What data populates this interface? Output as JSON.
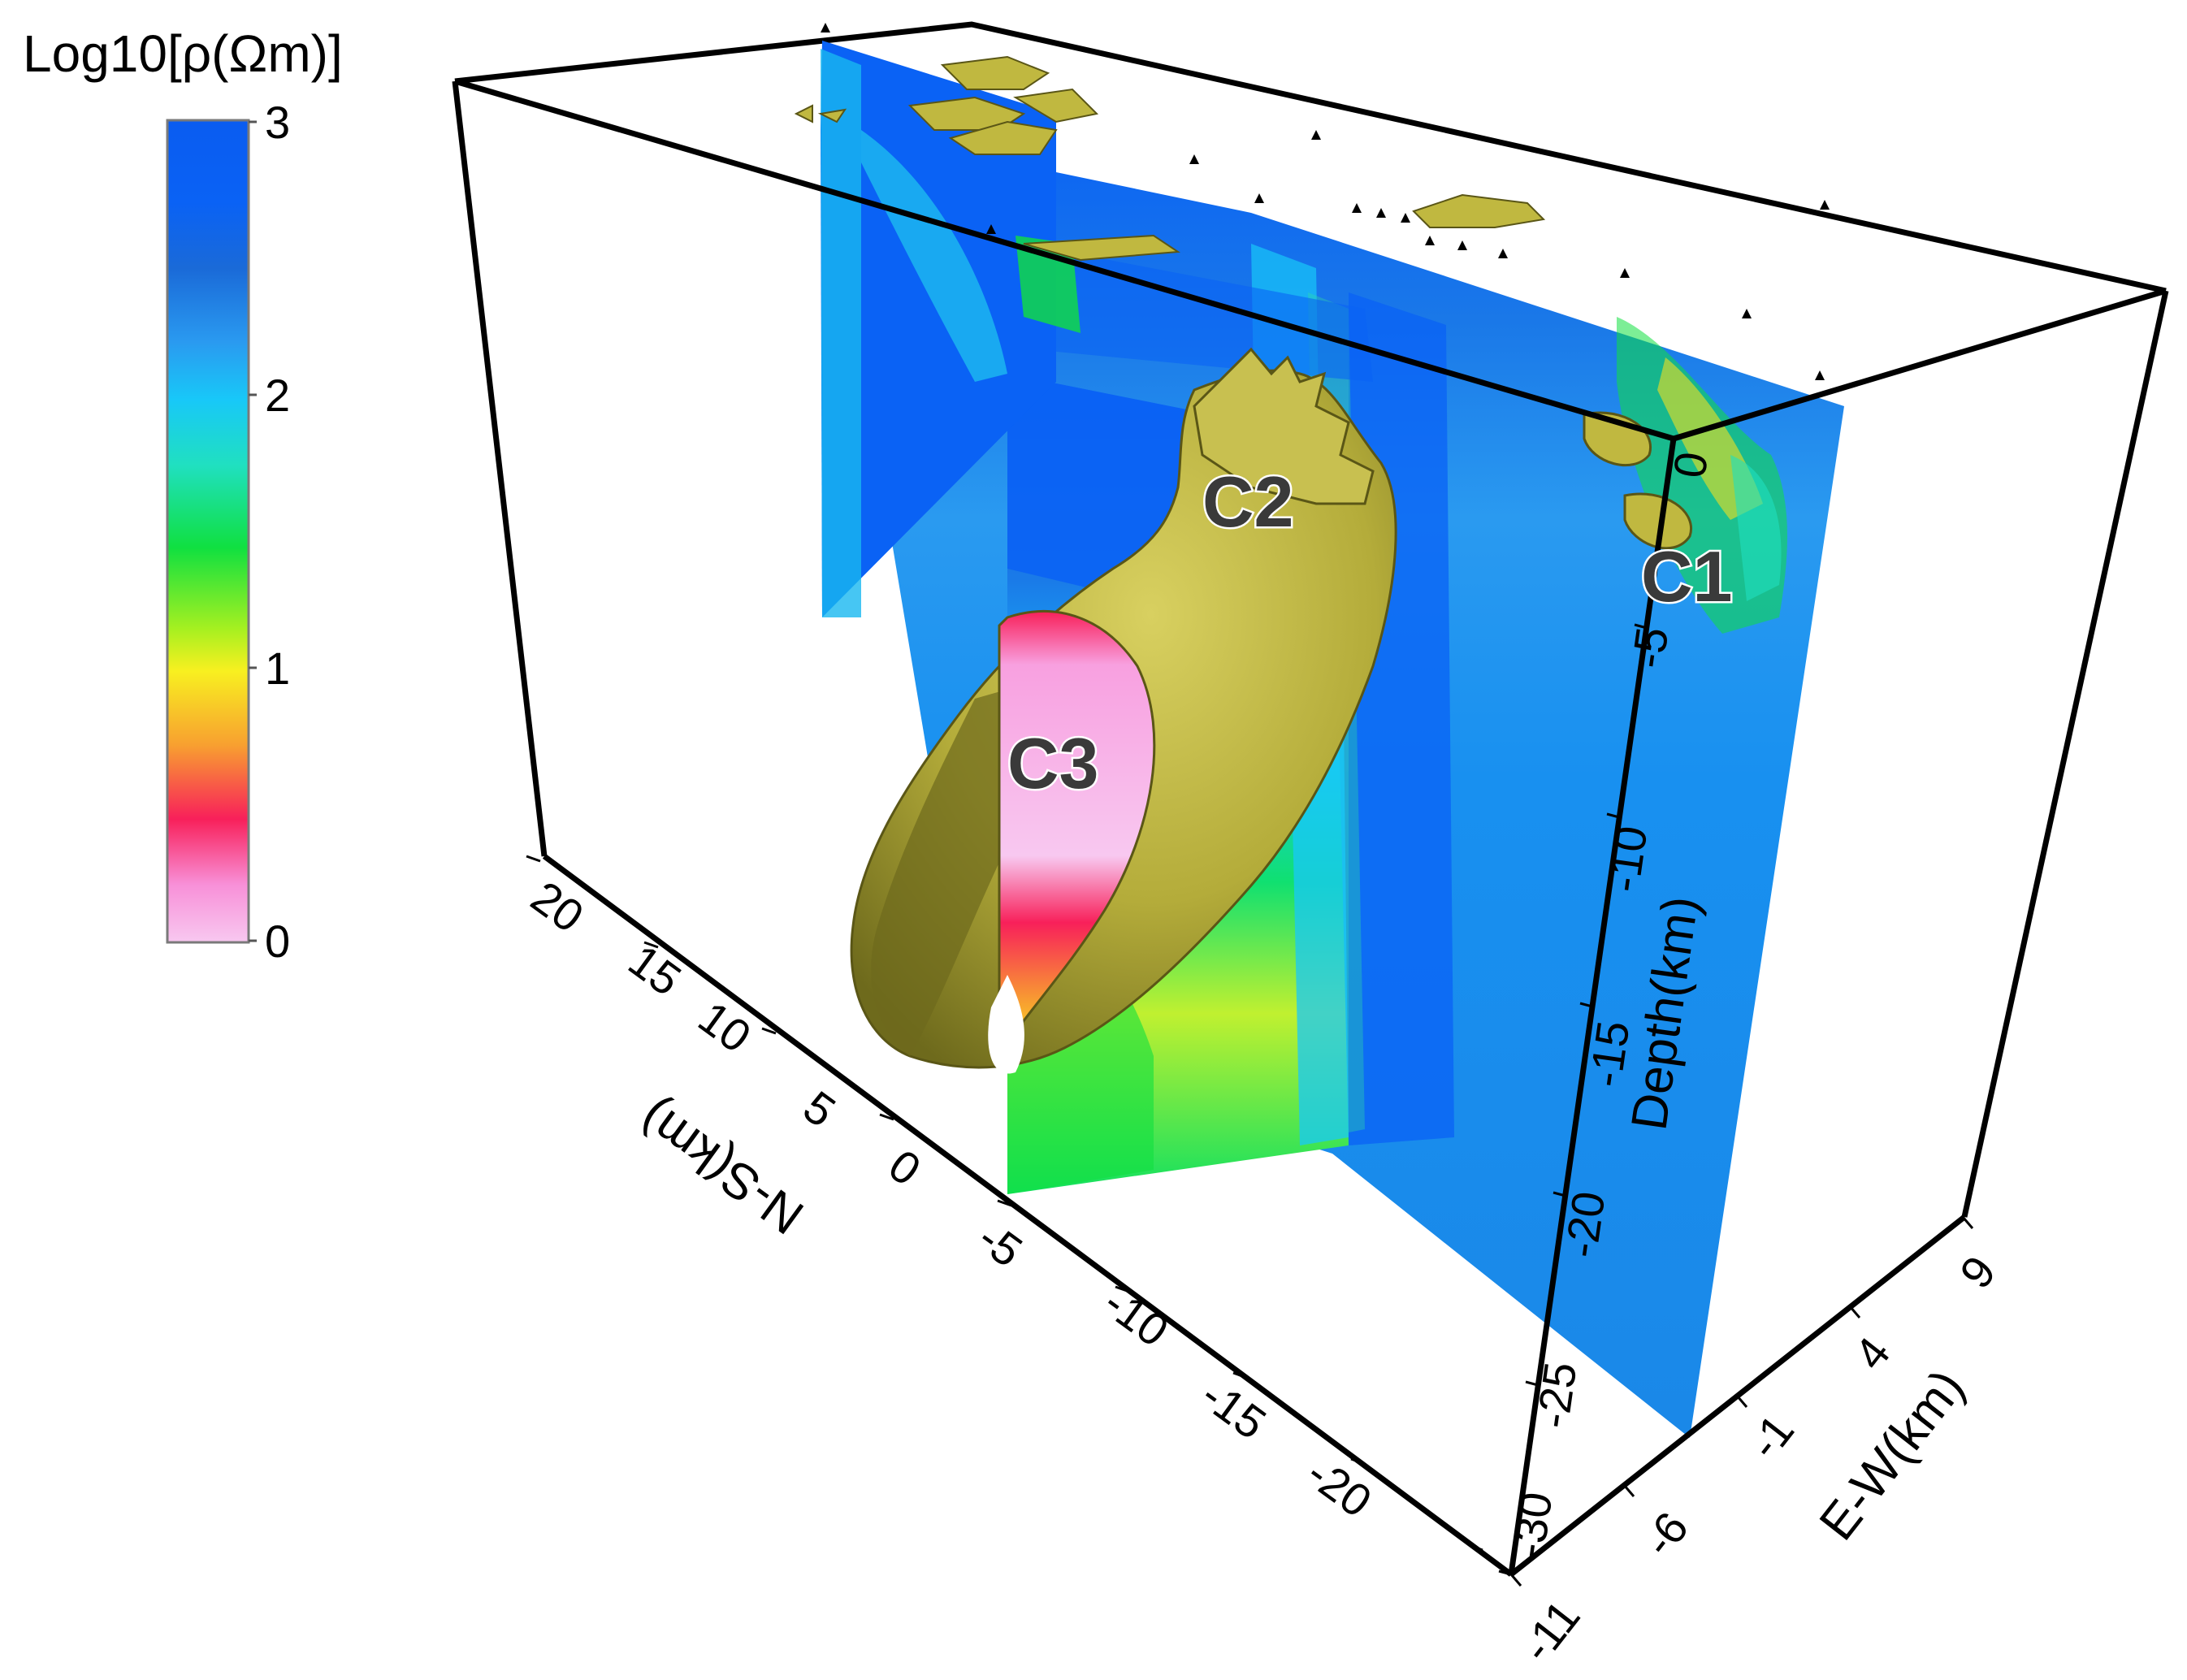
{
  "colorbar": {
    "title": "Log10[ρ(Ωm)]",
    "ticks": [
      "3",
      "2",
      "1",
      "0"
    ],
    "stops": [
      {
        "offset": 0.0,
        "color": "#0a5cf0"
      },
      {
        "offset": 0.1,
        "color": "#0a62f5"
      },
      {
        "offset": 0.18,
        "color": "#1a6ad8"
      },
      {
        "offset": 0.27,
        "color": "#2a9af0"
      },
      {
        "offset": 0.34,
        "color": "#18c8f8"
      },
      {
        "offset": 0.42,
        "color": "#20e0c0"
      },
      {
        "offset": 0.52,
        "color": "#10e040"
      },
      {
        "offset": 0.62,
        "color": "#a8f020"
      },
      {
        "offset": 0.67,
        "color": "#f8f020"
      },
      {
        "offset": 0.76,
        "color": "#f8a030"
      },
      {
        "offset": 0.85,
        "color": "#f8205a"
      },
      {
        "offset": 0.93,
        "color": "#f890d8"
      },
      {
        "offset": 1.0,
        "color": "#f8c8f0"
      }
    ]
  },
  "axes": {
    "ns": {
      "label": "N-S(km)",
      "ticks": [
        "20",
        "15",
        "10",
        "5",
        "0",
        "-5",
        "-10",
        "-15",
        "-20"
      ]
    },
    "ew": {
      "label": "E-W(km)",
      "ticks": [
        "-11",
        "-6",
        "-1",
        "4",
        "9"
      ]
    },
    "depth": {
      "label": "Depth(km)",
      "ticks": [
        "0",
        "-5",
        "-10",
        "-15",
        "-20",
        "-25",
        "-30"
      ]
    }
  },
  "annotations": {
    "c1": "C1",
    "c2": "C2",
    "c3": "C3"
  },
  "colors": {
    "isosurface": "#b8b040",
    "isosurface_dark": "#6e6a1c",
    "box": "#000000"
  }
}
